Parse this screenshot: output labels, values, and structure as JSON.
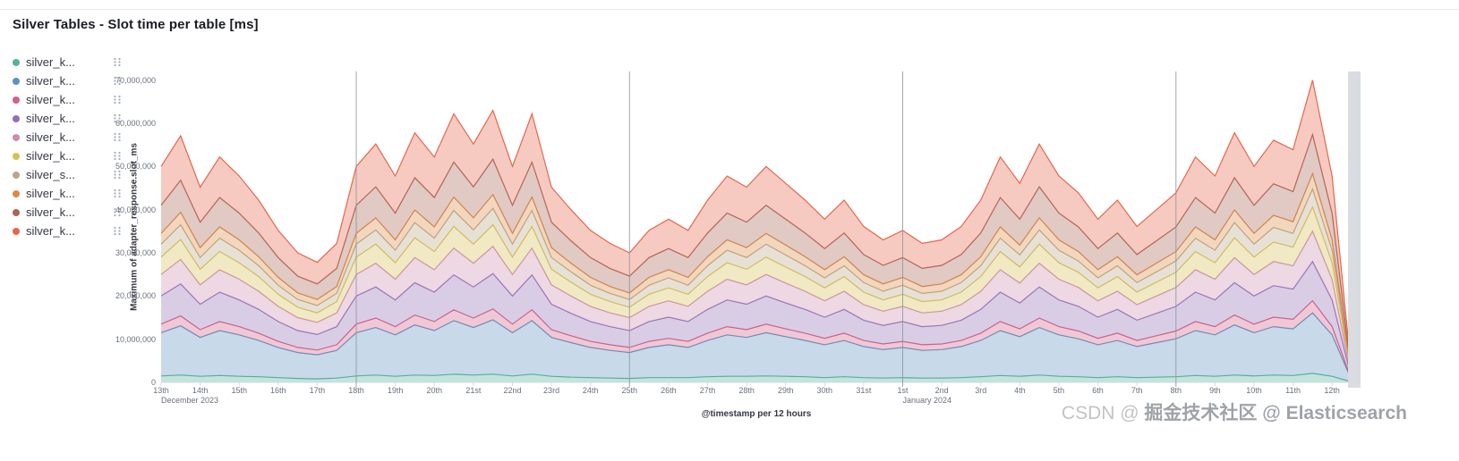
{
  "panel": {
    "title": "Silver Tables - Slot time per table [ms]"
  },
  "legend": {
    "items": [
      {
        "label": "silver_k...",
        "color": "#54B399"
      },
      {
        "label": "silver_k...",
        "color": "#6092C0"
      },
      {
        "label": "silver_k...",
        "color": "#D36086"
      },
      {
        "label": "silver_k...",
        "color": "#9170B8"
      },
      {
        "label": "silver_k...",
        "color": "#CA8EAE"
      },
      {
        "label": "silver_k...",
        "color": "#D6BF57"
      },
      {
        "label": "silver_s...",
        "color": "#B9A888"
      },
      {
        "label": "silver_k...",
        "color": "#DA8B45"
      },
      {
        "label": "silver_k...",
        "color": "#AA6556"
      },
      {
        "label": "silver_k...",
        "color": "#E7664C"
      }
    ],
    "handle_icon_color": "#98A2B3"
  },
  "chart_data": {
    "type": "area",
    "stacked": true,
    "title": "Silver Tables - Slot time per table [ms]",
    "xlabel": "@timestamp per 12 hours",
    "ylabel": "Maximum of adapter_response.slot_ms",
    "values_unit": "ms",
    "values_scale": 1000000,
    "points_per_day": 2,
    "ylim_millions": [
      0,
      72
    ],
    "y_tick_values_millions": [
      0,
      10,
      20,
      30,
      40,
      50,
      60,
      70
    ],
    "y_ticks_labels": [
      "0",
      "10,000,000",
      "20,000,000",
      "30,000,000",
      "40,000,000",
      "50,000,000",
      "60,000,000",
      "70,000,000"
    ],
    "x_day_labels": [
      "13th",
      "14th",
      "15th",
      "16th",
      "17th",
      "18th",
      "19th",
      "20th",
      "21st",
      "22nd",
      "23rd",
      "24th",
      "25th",
      "26th",
      "27th",
      "28th",
      "29th",
      "30th",
      "31st",
      "1st",
      "2nd",
      "3rd",
      "4th",
      "5th",
      "6th",
      "7th",
      "8th",
      "9th",
      "10th",
      "11th",
      "12th"
    ],
    "x_month_labels": [
      {
        "day_index": 0,
        "label": "December 2023"
      },
      {
        "day_index": 19,
        "label": "January 2024"
      }
    ],
    "weekly_gridline_day_indices": [
      5,
      12,
      19,
      26
    ],
    "grid_color": "#9096a1",
    "axis_color": "#d3dae6",
    "fill_opacity": 0.35,
    "legend_position": "left",
    "series": [
      {
        "name": "silver_k...",
        "color": "#54B399",
        "values_millions": [
          1.5,
          1.7,
          1.4,
          1.6,
          1.4,
          1.3,
          1.1,
          0.9,
          0.8,
          1.0,
          1.5,
          1.7,
          1.4,
          1.7,
          1.6,
          1.9,
          1.7,
          1.9,
          1.5,
          1.9,
          1.4,
          1.2,
          1.1,
          1.0,
          0.9,
          1.1,
          1.1,
          1.1,
          1.3,
          1.4,
          1.4,
          1.5,
          1.4,
          1.3,
          1.1,
          1.3,
          1.1,
          1.0,
          1.1,
          1.0,
          1.0,
          1.1,
          1.3,
          1.6,
          1.4,
          1.7,
          1.4,
          1.3,
          1.1,
          1.3,
          1.1,
          1.2,
          1.3,
          1.6,
          1.4,
          1.7,
          1.5,
          1.7,
          1.6,
          2.1,
          1.4,
          0.1
        ]
      },
      {
        "name": "silver_k...",
        "color": "#6092C0",
        "values_millions": [
          10.0,
          11.4,
          9.0,
          10.4,
          9.6,
          8.4,
          7.0,
          6.0,
          5.6,
          6.4,
          10.0,
          11.0,
          9.6,
          11.6,
          10.4,
          12.4,
          11.0,
          12.6,
          10.0,
          12.4,
          9.0,
          8.0,
          7.0,
          6.4,
          6.0,
          7.0,
          7.6,
          7.0,
          8.4,
          9.6,
          9.0,
          10.0,
          9.2,
          8.4,
          7.6,
          8.4,
          7.2,
          6.6,
          7.0,
          6.4,
          6.6,
          7.2,
          8.4,
          10.4,
          9.2,
          11.0,
          9.6,
          8.8,
          7.6,
          8.4,
          7.2,
          8.0,
          8.8,
          10.4,
          9.6,
          11.6,
          10.0,
          11.2,
          10.8,
          14.0,
          9.6,
          0.4
        ]
      },
      {
        "name": "silver_k...",
        "color": "#D36086",
        "values_millions": [
          2.0,
          2.3,
          1.8,
          2.1,
          1.9,
          1.7,
          1.4,
          1.2,
          1.1,
          1.3,
          2.0,
          2.2,
          1.9,
          2.3,
          2.1,
          2.5,
          2.2,
          2.5,
          2.0,
          2.5,
          1.8,
          1.6,
          1.4,
          1.3,
          1.2,
          1.4,
          1.5,
          1.4,
          1.7,
          1.9,
          1.8,
          2.0,
          1.8,
          1.7,
          1.5,
          1.7,
          1.4,
          1.3,
          1.4,
          1.3,
          1.3,
          1.4,
          1.7,
          2.1,
          1.8,
          2.2,
          1.9,
          1.8,
          1.5,
          1.7,
          1.4,
          1.6,
          1.8,
          2.1,
          1.9,
          2.3,
          2.0,
          2.2,
          2.2,
          2.8,
          1.9,
          0.1
        ]
      },
      {
        "name": "silver_k...",
        "color": "#9170B8",
        "values_millions": [
          6.5,
          7.4,
          5.9,
          6.8,
          6.2,
          5.5,
          4.6,
          3.9,
          3.6,
          4.2,
          6.5,
          7.2,
          6.2,
          7.5,
          6.8,
          8.1,
          7.2,
          8.2,
          6.5,
          8.1,
          5.9,
          5.2,
          4.6,
          4.2,
          3.9,
          4.6,
          4.9,
          4.6,
          5.5,
          6.2,
          5.9,
          6.5,
          6.0,
          5.5,
          4.9,
          5.5,
          4.7,
          4.3,
          4.6,
          4.2,
          4.3,
          4.7,
          5.5,
          6.8,
          6.0,
          7.2,
          6.2,
          5.7,
          4.9,
          5.5,
          4.7,
          5.2,
          5.7,
          6.8,
          6.2,
          7.5,
          6.5,
          7.3,
          7.0,
          9.1,
          6.2,
          0.3
        ]
      },
      {
        "name": "silver_k...",
        "color": "#CA8EAE",
        "values_millions": [
          5.0,
          5.7,
          4.5,
          5.2,
          4.8,
          4.2,
          3.5,
          3.0,
          2.8,
          3.2,
          5.0,
          5.5,
          4.8,
          5.8,
          5.2,
          6.2,
          5.5,
          6.3,
          5.0,
          6.2,
          4.5,
          4.0,
          3.5,
          3.2,
          3.0,
          3.5,
          3.8,
          3.5,
          4.2,
          4.8,
          4.5,
          5.0,
          4.6,
          4.2,
          3.8,
          4.2,
          3.6,
          3.3,
          3.5,
          3.2,
          3.3,
          3.6,
          4.2,
          5.2,
          4.6,
          5.5,
          4.8,
          4.4,
          3.8,
          4.2,
          3.6,
          4.0,
          4.4,
          5.2,
          4.8,
          5.8,
          5.0,
          5.6,
          5.4,
          7.0,
          4.8,
          0.2
        ]
      },
      {
        "name": "silver_k...",
        "color": "#D6BF57",
        "values_millions": [
          4.0,
          4.6,
          3.6,
          4.2,
          3.8,
          3.4,
          2.8,
          2.4,
          2.2,
          2.6,
          4.0,
          4.4,
          3.8,
          4.6,
          4.2,
          5.0,
          4.4,
          5.0,
          4.0,
          5.0,
          3.6,
          3.2,
          2.8,
          2.6,
          2.4,
          2.8,
          3.0,
          2.8,
          3.4,
          3.8,
          3.6,
          4.0,
          3.7,
          3.4,
          3.0,
          3.4,
          2.9,
          2.6,
          2.8,
          2.6,
          2.6,
          2.9,
          3.4,
          4.2,
          3.7,
          4.4,
          3.8,
          3.5,
          3.0,
          3.4,
          2.9,
          3.2,
          3.5,
          4.2,
          3.8,
          4.6,
          4.0,
          4.5,
          4.3,
          5.6,
          3.8,
          0.2
        ]
      },
      {
        "name": "silver_s...",
        "color": "#B9A888",
        "values_millions": [
          3.0,
          3.4,
          2.7,
          3.1,
          2.9,
          2.5,
          2.1,
          1.8,
          1.7,
          1.9,
          3.0,
          3.3,
          2.9,
          3.5,
          3.1,
          3.7,
          3.3,
          3.8,
          3.0,
          3.7,
          2.7,
          2.4,
          2.1,
          1.9,
          1.8,
          2.1,
          2.3,
          2.1,
          2.5,
          2.9,
          2.7,
          3.0,
          2.8,
          2.5,
          2.3,
          2.5,
          2.2,
          2.0,
          2.1,
          1.9,
          2.0,
          2.2,
          2.5,
          3.1,
          2.8,
          3.3,
          2.9,
          2.6,
          2.3,
          2.5,
          2.2,
          2.4,
          2.6,
          3.1,
          2.9,
          3.5,
          3.0,
          3.4,
          3.2,
          4.2,
          2.9,
          0.1
        ]
      },
      {
        "name": "silver_k...",
        "color": "#DA8B45",
        "values_millions": [
          2.5,
          2.9,
          2.3,
          2.6,
          2.4,
          2.1,
          1.8,
          1.5,
          1.4,
          1.6,
          2.5,
          2.8,
          2.4,
          2.9,
          2.6,
          3.1,
          2.8,
          3.2,
          2.5,
          3.1,
          2.3,
          2.0,
          1.8,
          1.6,
          1.5,
          1.8,
          1.9,
          1.8,
          2.1,
          2.4,
          2.3,
          2.5,
          2.3,
          2.1,
          1.9,
          2.1,
          1.8,
          1.7,
          1.8,
          1.6,
          1.7,
          1.8,
          2.1,
          2.6,
          2.3,
          2.8,
          2.4,
          2.2,
          1.9,
          2.1,
          1.8,
          2.0,
          2.2,
          2.6,
          2.4,
          2.9,
          2.5,
          2.8,
          2.7,
          3.5,
          2.4,
          0.1
        ]
      },
      {
        "name": "silver_k...",
        "color": "#AA6556",
        "values_millions": [
          6.5,
          7.4,
          5.9,
          6.8,
          6.2,
          5.5,
          4.6,
          3.9,
          3.6,
          4.2,
          6.5,
          7.2,
          6.2,
          7.5,
          6.8,
          8.1,
          7.2,
          8.2,
          6.5,
          8.1,
          5.9,
          5.2,
          4.6,
          4.2,
          3.9,
          4.6,
          4.9,
          4.6,
          5.5,
          6.2,
          5.9,
          6.5,
          6.0,
          5.5,
          4.9,
          5.5,
          4.7,
          4.3,
          4.6,
          4.2,
          4.3,
          4.7,
          5.5,
          6.8,
          6.0,
          7.2,
          6.2,
          5.7,
          4.9,
          5.5,
          4.7,
          5.2,
          5.7,
          6.8,
          6.2,
          7.5,
          6.5,
          7.3,
          7.0,
          9.1,
          6.2,
          0.3
        ]
      },
      {
        "name": "silver_k...",
        "color": "#E7664C",
        "values_millions": [
          9.0,
          10.3,
          8.1,
          9.4,
          8.6,
          7.6,
          6.3,
          5.4,
          5.0,
          5.8,
          9.0,
          9.9,
          8.6,
          10.4,
          9.4,
          11.2,
          9.9,
          11.3,
          9.0,
          11.2,
          8.1,
          7.2,
          6.3,
          5.8,
          5.4,
          6.3,
          6.8,
          6.3,
          7.6,
          8.6,
          8.1,
          9.0,
          8.3,
          7.6,
          6.8,
          7.6,
          6.5,
          5.9,
          6.3,
          5.8,
          5.9,
          6.5,
          7.6,
          9.4,
          8.3,
          9.9,
          8.6,
          7.9,
          6.8,
          7.6,
          6.5,
          7.2,
          7.9,
          9.4,
          8.6,
          10.4,
          9.0,
          10.1,
          9.7,
          12.6,
          8.6,
          0.4
        ]
      }
    ]
  },
  "watermark": {
    "prefix": "CSDN @ ",
    "text": "掘金技术社区 @ Elasticsearch"
  }
}
